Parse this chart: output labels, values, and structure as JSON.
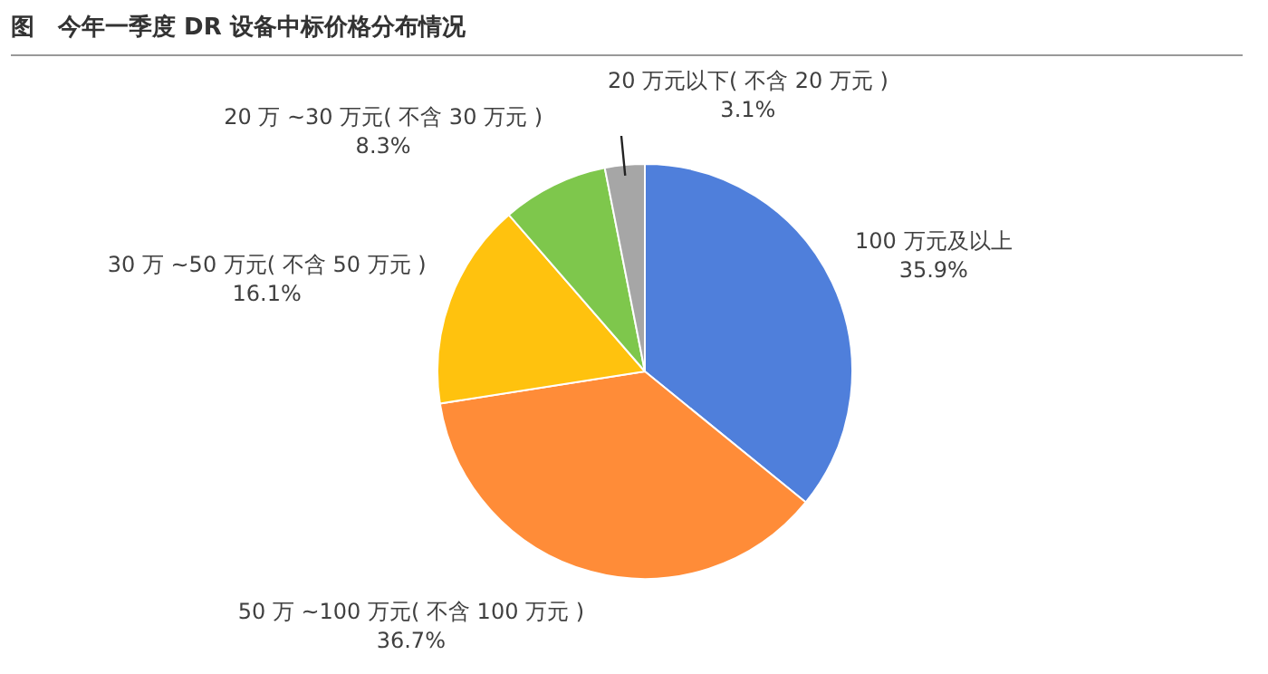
{
  "chart_data": {
    "type": "pie",
    "title": "图　今年一季度 DR 设备中标价格分布情况",
    "categories": [
      "100 万元及以上",
      "50 万 ~100 万元( 不含 100 万元 )",
      "30 万 ~50 万元( 不含 50 万元 )",
      "20 万 ~30 万元( 不含 30 万元 )",
      "20 万元以下( 不含 20 万元 )"
    ],
    "values": [
      35.9,
      36.7,
      16.1,
      8.3,
      3.1
    ],
    "value_labels": [
      "35.9%",
      "36.7%",
      "16.1%",
      "8.3%",
      "3.1%"
    ],
    "colors": [
      "#4f7fdb",
      "#ff8c38",
      "#ffc20e",
      "#7ec74c",
      "#a6a6a6"
    ],
    "legend": false
  }
}
